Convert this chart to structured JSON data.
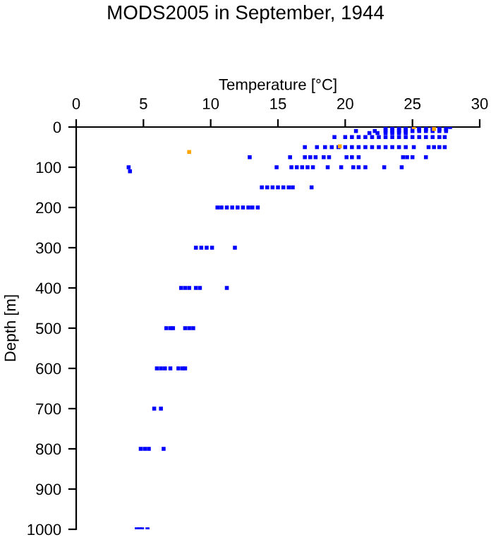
{
  "chart_data": {
    "type": "scatter",
    "title": "MODS2005 in September, 1944",
    "xlabel": "Temperature [°C]",
    "ylabel": "Depth [m]",
    "xlim": [
      0,
      30
    ],
    "ylim": [
      1000,
      0
    ],
    "xticks": [
      0,
      5,
      10,
      15,
      20,
      25,
      30
    ],
    "yticks": [
      0,
      100,
      200,
      300,
      400,
      500,
      600,
      700,
      800,
      900,
      1000
    ],
    "marker": "square",
    "series": [
      {
        "color": "#0000ff",
        "x": [
          23,
          23.5,
          24,
          24.5,
          25,
          25.5,
          26,
          26.5,
          27,
          27.5,
          27.8,
          23,
          23.5,
          24,
          24.5,
          25.5,
          26,
          26.5,
          27,
          27.5,
          20.8,
          22.2,
          23,
          23.5,
          24,
          24.5,
          25,
          25.5,
          26,
          26.5,
          27,
          27.5,
          21.8,
          22.4,
          23,
          23.5,
          24,
          24.5,
          19.2,
          20,
          20.5,
          21,
          21.5,
          22,
          22.5,
          23,
          23.5,
          24,
          24.5,
          25,
          25.5,
          26,
          26.5,
          27,
          27.4,
          17,
          17.9,
          18.5,
          19,
          19.5,
          20,
          20.5,
          21,
          21.5,
          22,
          22.5,
          23,
          23.5,
          24,
          24.5,
          25.1,
          26.2,
          26.6,
          27,
          27.4,
          12.9,
          15.9,
          17,
          17.4,
          17.8,
          18.4,
          18.8,
          20.1,
          20.5,
          21,
          24.3,
          24.6,
          25,
          26,
          3.9,
          14.9,
          16,
          16.4,
          16.8,
          17.2,
          17.6,
          18.7,
          19.7,
          20.6,
          21,
          21.5,
          22.9,
          24.2,
          4.0,
          13.8,
          14.2,
          14.6,
          15,
          15.4,
          15.8,
          16.1,
          17.5,
          10.5,
          10.8,
          11.2,
          11.6,
          12,
          12.4,
          12.8,
          13.1,
          13.5,
          8.9,
          9.3,
          9.7,
          10.1,
          11.8,
          7.8,
          8.1,
          8.4,
          8.9,
          9.2,
          11.2,
          6.7,
          7.0,
          7.2,
          8.1,
          8.4,
          8.7,
          6.0,
          6.3,
          6.6,
          7.0,
          7.6,
          7.9,
          8.1,
          5.8,
          6.3,
          4.8,
          5.1,
          5.4,
          6.5,
          4.5,
          4.7,
          4.9,
          5.3
        ],
        "values": [
          0,
          0,
          0,
          0,
          0,
          0,
          0,
          0,
          0,
          0,
          0,
          5,
          5,
          5,
          5,
          5,
          5,
          5,
          5,
          5,
          10,
          10,
          10,
          10,
          10,
          10,
          10,
          10,
          10,
          10,
          10,
          10,
          15,
          15,
          15,
          15,
          15,
          15,
          25,
          25,
          25,
          25,
          25,
          25,
          25,
          25,
          25,
          25,
          25,
          25,
          25,
          25,
          25,
          25,
          25,
          50,
          50,
          50,
          50,
          50,
          50,
          50,
          50,
          50,
          50,
          50,
          50,
          50,
          50,
          50,
          50,
          50,
          50,
          50,
          50,
          75,
          75,
          75,
          75,
          75,
          75,
          75,
          75,
          75,
          75,
          75,
          75,
          75,
          75,
          100,
          100,
          100,
          100,
          100,
          100,
          100,
          100,
          100,
          100,
          100,
          100,
          100,
          100,
          110,
          150,
          150,
          150,
          150,
          150,
          150,
          150,
          150,
          200,
          200,
          200,
          200,
          200,
          200,
          200,
          200,
          200,
          300,
          300,
          300,
          300,
          300,
          400,
          400,
          400,
          400,
          400,
          400,
          500,
          500,
          500,
          500,
          500,
          500,
          600,
          600,
          600,
          600,
          600,
          600,
          600,
          700,
          700,
          800,
          800,
          800,
          800,
          1000,
          1000,
          1000,
          1000
        ]
      },
      {
        "color": "#ffa500",
        "x": [
          25.1,
          26.6,
          8.4,
          19.6
        ],
        "values": [
          0,
          5,
          62,
          48
        ]
      }
    ]
  }
}
